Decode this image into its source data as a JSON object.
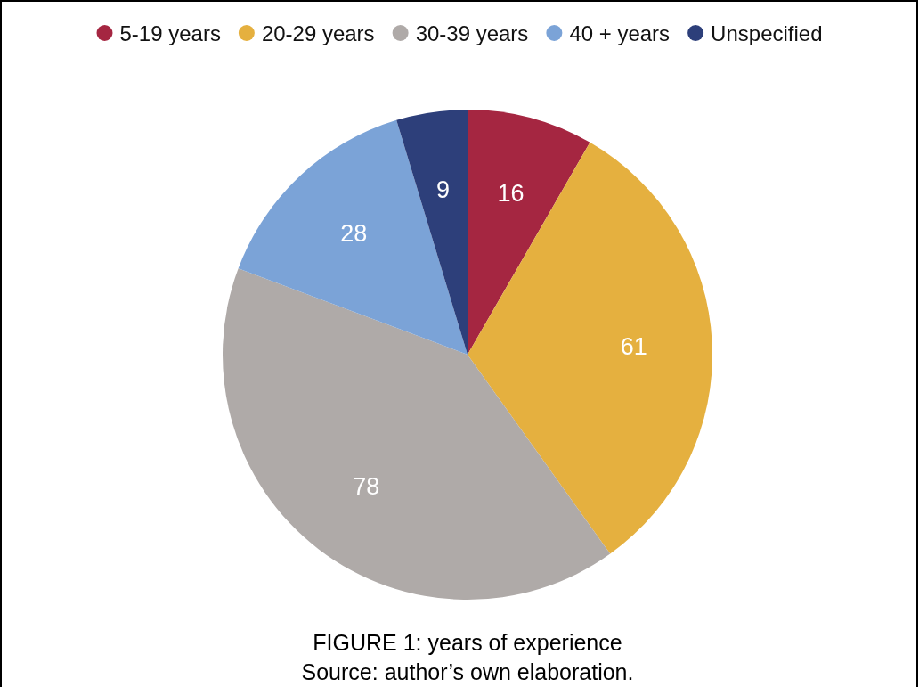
{
  "chart_data": {
    "type": "pie",
    "title": "FIGURE 1: years of experience",
    "categories": [
      "5-19 years",
      "20-29 years",
      "30-39 years",
      "40 + years",
      "Unspecified"
    ],
    "values": [
      16,
      61,
      78,
      28,
      9
    ],
    "colors": [
      "#a52641",
      "#e5b03f",
      "#afaaa8",
      "#7ba3d7",
      "#2d3f7a"
    ],
    "data_labels": true,
    "legend": "top",
    "annotations": [
      "Source: author’s own elaboration."
    ]
  }
}
